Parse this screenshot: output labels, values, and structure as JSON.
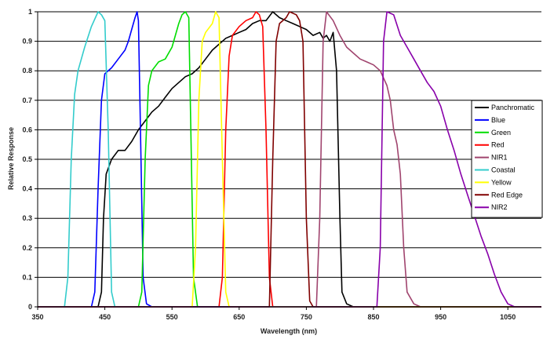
{
  "chart_data": {
    "type": "line",
    "title": "",
    "xlabel": "Wavelength (nm)",
    "ylabel": "Relative Response",
    "xlim": [
      350,
      1100
    ],
    "ylim": [
      0,
      1
    ],
    "x_ticks": [
      350,
      450,
      550,
      650,
      750,
      850,
      950,
      1050
    ],
    "x_tick_labels": [
      "350",
      "450",
      "550",
      "650",
      "750",
      "850",
      "950",
      "1050"
    ],
    "y_ticks": [
      0,
      0.1,
      0.2,
      0.3,
      0.4,
      0.5,
      0.6,
      0.7,
      0.8,
      0.9,
      1
    ],
    "y_tick_labels": [
      "0",
      "0.1",
      "0.2",
      "0.3",
      "0.4",
      "0.5",
      "0.6",
      "0.7",
      "0.8",
      "0.9",
      "1"
    ],
    "grid": "horizontal",
    "legend_position": "right",
    "series": [
      {
        "name": "Panchromatic",
        "color": "#000000",
        "points": [
          [
            350,
            0
          ],
          [
            440,
            0
          ],
          [
            445,
            0.05
          ],
          [
            448,
            0.3
          ],
          [
            452,
            0.45
          ],
          [
            460,
            0.5
          ],
          [
            470,
            0.53
          ],
          [
            480,
            0.53
          ],
          [
            490,
            0.56
          ],
          [
            500,
            0.6
          ],
          [
            510,
            0.63
          ],
          [
            520,
            0.66
          ],
          [
            530,
            0.68
          ],
          [
            540,
            0.71
          ],
          [
            550,
            0.74
          ],
          [
            560,
            0.76
          ],
          [
            570,
            0.78
          ],
          [
            580,
            0.79
          ],
          [
            590,
            0.81
          ],
          [
            600,
            0.84
          ],
          [
            610,
            0.87
          ],
          [
            620,
            0.89
          ],
          [
            630,
            0.91
          ],
          [
            640,
            0.92
          ],
          [
            650,
            0.93
          ],
          [
            660,
            0.94
          ],
          [
            670,
            0.96
          ],
          [
            680,
            0.97
          ],
          [
            690,
            0.97
          ],
          [
            700,
            1.0
          ],
          [
            710,
            0.98
          ],
          [
            720,
            0.97
          ],
          [
            730,
            0.96
          ],
          [
            740,
            0.95
          ],
          [
            750,
            0.94
          ],
          [
            760,
            0.92
          ],
          [
            770,
            0.93
          ],
          [
            775,
            0.91
          ],
          [
            780,
            0.92
          ],
          [
            785,
            0.9
          ],
          [
            790,
            0.93
          ],
          [
            795,
            0.8
          ],
          [
            800,
            0.3
          ],
          [
            803,
            0.05
          ],
          [
            810,
            0.01
          ],
          [
            820,
            0
          ],
          [
            1100,
            0
          ]
        ]
      },
      {
        "name": "Blue",
        "color": "#0000ff",
        "points": [
          [
            350,
            0
          ],
          [
            430,
            0
          ],
          [
            435,
            0.05
          ],
          [
            440,
            0.4
          ],
          [
            445,
            0.7
          ],
          [
            450,
            0.79
          ],
          [
            460,
            0.81
          ],
          [
            470,
            0.84
          ],
          [
            480,
            0.87
          ],
          [
            485,
            0.9
          ],
          [
            490,
            0.94
          ],
          [
            495,
            0.98
          ],
          [
            498,
            1.0
          ],
          [
            500,
            0.97
          ],
          [
            503,
            0.6
          ],
          [
            507,
            0.1
          ],
          [
            512,
            0.01
          ],
          [
            520,
            0
          ],
          [
            1100,
            0
          ]
        ]
      },
      {
        "name": "Green",
        "color": "#00dd00",
        "points": [
          [
            350,
            0
          ],
          [
            500,
            0
          ],
          [
            505,
            0.05
          ],
          [
            510,
            0.5
          ],
          [
            515,
            0.75
          ],
          [
            520,
            0.8
          ],
          [
            530,
            0.83
          ],
          [
            540,
            0.84
          ],
          [
            550,
            0.88
          ],
          [
            560,
            0.96
          ],
          [
            565,
            0.99
          ],
          [
            570,
            1.0
          ],
          [
            575,
            0.98
          ],
          [
            578,
            0.6
          ],
          [
            582,
            0.1
          ],
          [
            588,
            0
          ],
          [
            1100,
            0
          ]
        ]
      },
      {
        "name": "Red",
        "color": "#ff0000",
        "points": [
          [
            350,
            0
          ],
          [
            620,
            0
          ],
          [
            625,
            0.1
          ],
          [
            630,
            0.6
          ],
          [
            635,
            0.85
          ],
          [
            640,
            0.92
          ],
          [
            650,
            0.95
          ],
          [
            660,
            0.97
          ],
          [
            670,
            0.98
          ],
          [
            675,
            1.0
          ],
          [
            680,
            0.99
          ],
          [
            685,
            0.95
          ],
          [
            690,
            0.6
          ],
          [
            695,
            0.1
          ],
          [
            700,
            0
          ],
          [
            1100,
            0
          ]
        ]
      },
      {
        "name": "NIR1",
        "color": "#a0446e",
        "points": [
          [
            350,
            0
          ],
          [
            765,
            0
          ],
          [
            770,
            0.3
          ],
          [
            775,
            0.9
          ],
          [
            780,
            1.0
          ],
          [
            790,
            0.97
          ],
          [
            800,
            0.92
          ],
          [
            810,
            0.88
          ],
          [
            820,
            0.86
          ],
          [
            830,
            0.84
          ],
          [
            840,
            0.83
          ],
          [
            850,
            0.82
          ],
          [
            860,
            0.8
          ],
          [
            870,
            0.75
          ],
          [
            875,
            0.7
          ],
          [
            880,
            0.6
          ],
          [
            885,
            0.55
          ],
          [
            890,
            0.45
          ],
          [
            895,
            0.2
          ],
          [
            900,
            0.05
          ],
          [
            910,
            0.01
          ],
          [
            920,
            0
          ],
          [
            1100,
            0
          ]
        ]
      },
      {
        "name": "Coastal",
        "color": "#33cccc",
        "points": [
          [
            350,
            0
          ],
          [
            390,
            0
          ],
          [
            395,
            0.1
          ],
          [
            400,
            0.5
          ],
          [
            405,
            0.72
          ],
          [
            410,
            0.8
          ],
          [
            420,
            0.88
          ],
          [
            430,
            0.95
          ],
          [
            440,
            1.0
          ],
          [
            445,
            0.99
          ],
          [
            450,
            0.97
          ],
          [
            455,
            0.6
          ],
          [
            460,
            0.05
          ],
          [
            465,
            0
          ],
          [
            1100,
            0
          ]
        ]
      },
      {
        "name": "Yellow",
        "color": "#ffff00",
        "points": [
          [
            350,
            0
          ],
          [
            580,
            0
          ],
          [
            585,
            0.2
          ],
          [
            590,
            0.7
          ],
          [
            595,
            0.9
          ],
          [
            600,
            0.93
          ],
          [
            610,
            0.96
          ],
          [
            615,
            1.0
          ],
          [
            620,
            0.98
          ],
          [
            625,
            0.5
          ],
          [
            630,
            0.05
          ],
          [
            635,
            0
          ],
          [
            1100,
            0
          ]
        ]
      },
      {
        "name": "Red Edge",
        "color": "#800000",
        "points": [
          [
            350,
            0
          ],
          [
            695,
            0
          ],
          [
            700,
            0.5
          ],
          [
            705,
            0.9
          ],
          [
            710,
            0.96
          ],
          [
            720,
            0.98
          ],
          [
            725,
            1.0
          ],
          [
            735,
            0.99
          ],
          [
            740,
            0.97
          ],
          [
            745,
            0.9
          ],
          [
            750,
            0.3
          ],
          [
            755,
            0.02
          ],
          [
            760,
            0
          ],
          [
            1100,
            0
          ]
        ]
      },
      {
        "name": "NIR2",
        "color": "#8800aa",
        "points": [
          [
            350,
            0
          ],
          [
            855,
            0
          ],
          [
            860,
            0.2
          ],
          [
            865,
            0.9
          ],
          [
            870,
            1.0
          ],
          [
            880,
            0.99
          ],
          [
            890,
            0.92
          ],
          [
            900,
            0.88
          ],
          [
            910,
            0.84
          ],
          [
            920,
            0.8
          ],
          [
            930,
            0.76
          ],
          [
            940,
            0.73
          ],
          [
            950,
            0.68
          ],
          [
            960,
            0.6
          ],
          [
            970,
            0.53
          ],
          [
            980,
            0.45
          ],
          [
            990,
            0.38
          ],
          [
            1000,
            0.31
          ],
          [
            1010,
            0.24
          ],
          [
            1020,
            0.18
          ],
          [
            1030,
            0.11
          ],
          [
            1040,
            0.05
          ],
          [
            1050,
            0.01
          ],
          [
            1060,
            0
          ],
          [
            1100,
            0
          ]
        ]
      }
    ]
  }
}
